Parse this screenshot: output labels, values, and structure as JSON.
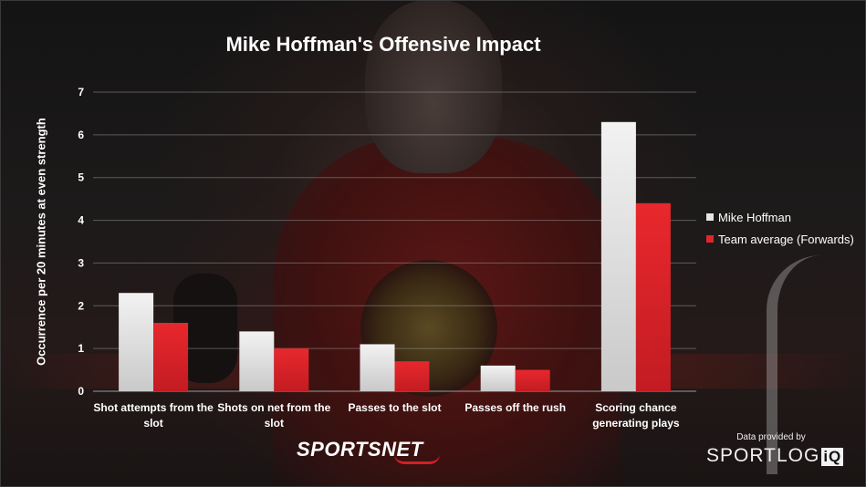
{
  "chart_data": {
    "type": "bar",
    "title": "Mike Hoffman's Offensive Impact",
    "ylabel": "Occurrence per 20 minutes at even strength",
    "xlabel": "",
    "ylim": [
      0,
      7
    ],
    "yticks": [
      0,
      1,
      2,
      3,
      4,
      5,
      6,
      7
    ],
    "grid": true,
    "legend_position": "right",
    "categories": [
      [
        "Shot attempts from the",
        "slot"
      ],
      [
        "Shots on net from the",
        "slot"
      ],
      [
        "Passes to the slot"
      ],
      [
        "Passes off the rush"
      ],
      [
        "Scoring chance",
        "generating plays"
      ]
    ],
    "series": [
      {
        "name": "Mike Hoffman",
        "color": "#e6e6e6",
        "values": [
          2.3,
          1.4,
          1.1,
          0.6,
          6.3
        ]
      },
      {
        "name": "Team average (Forwards)",
        "color": "#e0262b",
        "values": [
          1.6,
          1.0,
          0.7,
          0.5,
          4.4
        ]
      }
    ]
  },
  "branding": {
    "broadcaster": "SPORTSNET",
    "credit": "Data provided by",
    "provider_main": "SPORTLOG",
    "provider_mark": "iQ"
  }
}
